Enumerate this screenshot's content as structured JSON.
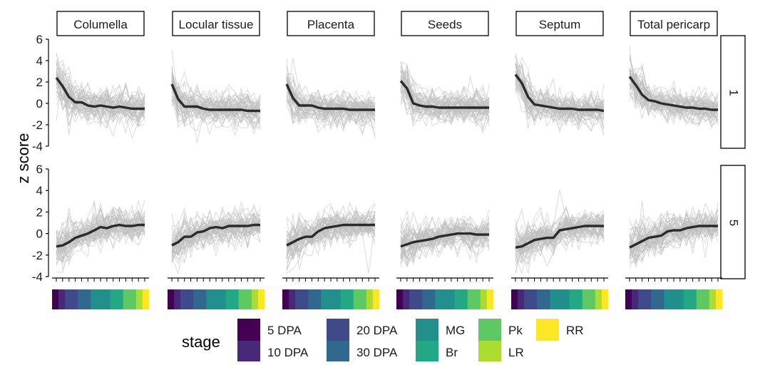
{
  "chart_data": {
    "type": "line",
    "ylabel": "z score",
    "ylim": [
      -4,
      6
    ],
    "yticks": [
      -4,
      -2,
      0,
      2,
      4,
      6
    ],
    "x_count": 15,
    "facet_columns": [
      "Columella",
      "Locular tissue",
      "Placenta",
      "Seeds",
      "Septum",
      "Total pericarp"
    ],
    "facet_rows": [
      "1",
      "5"
    ],
    "mean_lines": {
      "1": [
        [
          2.4,
          1.6,
          0.6,
          0.1,
          0.1,
          -0.2,
          -0.3,
          -0.2,
          -0.3,
          -0.4,
          -0.3,
          -0.4,
          -0.5,
          -0.5,
          -0.5
        ],
        [
          1.8,
          0.4,
          -0.3,
          -0.3,
          -0.3,
          -0.5,
          -0.6,
          -0.6,
          -0.6,
          -0.6,
          -0.6,
          -0.6,
          -0.7,
          -0.7,
          -0.7
        ],
        [
          1.8,
          0.5,
          -0.2,
          -0.2,
          -0.2,
          -0.4,
          -0.5,
          -0.5,
          -0.5,
          -0.5,
          -0.6,
          -0.6,
          -0.6,
          -0.6,
          -0.6
        ],
        [
          2.1,
          1.4,
          0.0,
          -0.2,
          -0.3,
          -0.3,
          -0.4,
          -0.4,
          -0.4,
          -0.4,
          -0.4,
          -0.4,
          -0.4,
          -0.4,
          -0.4
        ],
        [
          2.7,
          1.9,
          0.6,
          -0.1,
          -0.2,
          -0.3,
          -0.4,
          -0.5,
          -0.5,
          -0.5,
          -0.6,
          -0.6,
          -0.6,
          -0.6,
          -0.7
        ],
        [
          2.5,
          1.7,
          0.8,
          0.3,
          0.2,
          0.0,
          -0.1,
          -0.2,
          -0.3,
          -0.4,
          -0.4,
          -0.5,
          -0.5,
          -0.6,
          -0.6
        ]
      ],
      "5": [
        [
          -1.2,
          -1.1,
          -0.8,
          -0.4,
          -0.2,
          0.0,
          0.3,
          0.6,
          0.5,
          0.7,
          0.8,
          0.7,
          0.7,
          0.8,
          0.8
        ],
        [
          -1.1,
          -0.8,
          -0.3,
          -0.3,
          0.1,
          0.2,
          0.5,
          0.6,
          0.5,
          0.7,
          0.7,
          0.7,
          0.7,
          0.8,
          0.8
        ],
        [
          -1.1,
          -0.8,
          -0.5,
          -0.3,
          -0.3,
          0.2,
          0.5,
          0.6,
          0.7,
          0.8,
          0.8,
          0.8,
          0.8,
          0.8,
          0.8
        ],
        [
          -1.2,
          -1.0,
          -0.8,
          -0.7,
          -0.6,
          -0.5,
          -0.3,
          -0.2,
          -0.1,
          0.0,
          0.0,
          0.0,
          -0.1,
          -0.1,
          -0.1
        ],
        [
          -1.3,
          -1.2,
          -0.9,
          -0.6,
          -0.5,
          -0.4,
          -0.4,
          0.3,
          0.4,
          0.5,
          0.6,
          0.7,
          0.7,
          0.7,
          0.7
        ],
        [
          -1.3,
          -1.0,
          -0.7,
          -0.4,
          -0.3,
          -0.2,
          0.2,
          0.3,
          0.3,
          0.5,
          0.6,
          0.7,
          0.7,
          0.7,
          0.7
        ]
      ]
    },
    "stage_strip": [
      "5 DPA",
      "10 DPA",
      "20 DPA",
      "20 DPA",
      "30 DPA",
      "30 DPA",
      "MG",
      "MG",
      "MG",
      "Br",
      "Br",
      "Pk",
      "Pk",
      "LR",
      "RR"
    ],
    "legend": {
      "title": "stage",
      "placement": "bottom",
      "items": [
        {
          "label": "5 DPA",
          "color": "#440154"
        },
        {
          "label": "10 DPA",
          "color": "#482878"
        },
        {
          "label": "20 DPA",
          "color": "#3e4a89"
        },
        {
          "label": "30 DPA",
          "color": "#31688e"
        },
        {
          "label": "MG",
          "color": "#21908d"
        },
        {
          "label": "Br",
          "color": "#22a884"
        },
        {
          "label": "Pk",
          "color": "#5ec962"
        },
        {
          "label": "LR",
          "color": "#addc30"
        },
        {
          "label": "RR",
          "color": "#fde725"
        }
      ]
    },
    "colors": {
      "mean_line": "#2b2b2b",
      "background_lines": "#bdbdbd",
      "axis": "#000000"
    }
  }
}
